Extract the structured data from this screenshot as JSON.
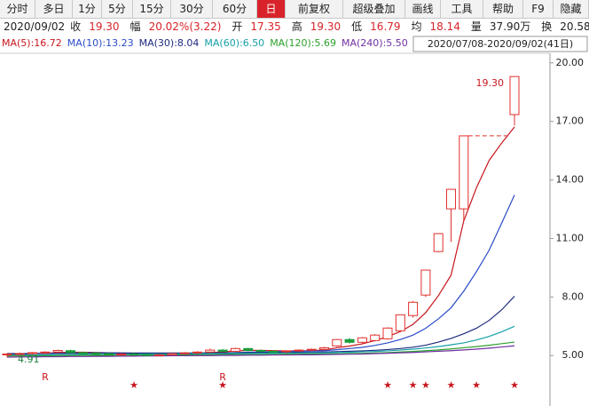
{
  "toolbar": [
    "分时",
    "多日",
    "1分",
    "5分",
    "15分",
    "30分",
    "60分",
    "日",
    "前复权",
    "超级叠加",
    "画线",
    "工具",
    "帮助",
    "F9",
    "隐藏"
  ],
  "toolbar_selected": "日",
  "info": {
    "date": "2020/09/02",
    "items": [
      {
        "label": "收",
        "value": "19.30",
        "color": "#d8232a"
      },
      {
        "label": "幅",
        "value": "20.02%(3.22)",
        "color": "#d8232a"
      },
      {
        "label": "开",
        "value": "17.35",
        "color": "#d8232a"
      },
      {
        "label": "高",
        "value": "19.30",
        "color": "#d8232a"
      },
      {
        "label": "低",
        "value": "16.79",
        "color": "#d8232a"
      },
      {
        "label": "均",
        "value": "18.14",
        "color": "#d8232a"
      },
      {
        "label": "量",
        "value": "37.90万",
        "color": "#222222"
      },
      {
        "label": "换",
        "value": "20.58%",
        "color": "#222222"
      }
    ]
  },
  "chart_data": {
    "type": "candlestick",
    "date_range": "2020/07/08-2020/09/02(41日)",
    "up_color": "#e0302c",
    "down_color": "#1a9c3a",
    "open": [
      5.05,
      5.08,
      5.1,
      5.15,
      5.18,
      5.25,
      5.15,
      5.12,
      5.1,
      5.06,
      5.08,
      5.05,
      5.02,
      5.04,
      5.1,
      5.14,
      5.18,
      5.28,
      5.22,
      5.36,
      5.26,
      5.22,
      5.2,
      5.24,
      5.28,
      5.32,
      5.5,
      5.82,
      5.68,
      5.77,
      5.86,
      6.27,
      7.05,
      8.1,
      10.33,
      12.52,
      12.52,
      null,
      null,
      null,
      17.35
    ],
    "high": [
      5.12,
      5.15,
      5.18,
      5.22,
      5.3,
      5.3,
      5.2,
      5.18,
      5.15,
      5.12,
      5.14,
      5.1,
      5.08,
      5.12,
      5.18,
      5.22,
      5.35,
      5.34,
      5.4,
      5.4,
      5.32,
      5.28,
      5.26,
      5.32,
      5.36,
      5.45,
      5.85,
      5.9,
      5.95,
      6.1,
      6.45,
      7.09,
      7.8,
      9.38,
      11.25,
      13.52,
      16.26,
      null,
      null,
      null,
      19.3
    ],
    "low": [
      4.91,
      5.02,
      5.05,
      5.08,
      5.12,
      5.12,
      5.08,
      5.05,
      5.02,
      5.0,
      5.02,
      4.96,
      4.98,
      5.0,
      5.05,
      5.08,
      5.12,
      5.18,
      5.18,
      5.22,
      5.18,
      5.15,
      5.12,
      5.18,
      5.22,
      5.26,
      5.45,
      5.62,
      5.62,
      5.72,
      5.82,
      6.2,
      6.95,
      8.0,
      10.3,
      10.83,
      11.9,
      null,
      null,
      null,
      16.79
    ],
    "close": [
      5.08,
      5.1,
      5.15,
      5.18,
      5.26,
      5.15,
      5.12,
      5.1,
      5.06,
      5.08,
      5.05,
      5.02,
      5.04,
      5.1,
      5.14,
      5.18,
      5.28,
      5.22,
      5.36,
      5.26,
      5.22,
      5.2,
      5.24,
      5.28,
      5.32,
      5.4,
      5.82,
      5.68,
      5.91,
      6.05,
      6.41,
      7.09,
      7.73,
      9.38,
      11.25,
      13.52,
      16.26,
      null,
      null,
      null,
      19.3
    ],
    "high_label": "19.30",
    "low_label": "4.91",
    "marks_top": [
      null,
      null,
      null,
      "R",
      null,
      null,
      null,
      null,
      null,
      null,
      null,
      null,
      null,
      null,
      null,
      null,
      null,
      "R",
      null,
      null,
      null,
      null,
      null,
      null,
      null,
      null,
      null,
      null,
      null,
      null,
      null,
      null,
      null,
      null,
      null,
      null,
      null,
      null,
      null,
      null,
      null
    ],
    "marks_bottom": [
      null,
      null,
      null,
      null,
      null,
      null,
      null,
      null,
      null,
      null,
      "★",
      null,
      null,
      null,
      null,
      null,
      null,
      "★",
      null,
      null,
      null,
      null,
      null,
      null,
      null,
      null,
      null,
      null,
      null,
      null,
      "★",
      null,
      "★",
      "★",
      null,
      "★",
      null,
      "★",
      null,
      null,
      "★"
    ],
    "series": [
      {
        "name": "MA(5):16.72",
        "color": "#c8161d",
        "values": [
          5.06,
          5.08,
          5.1,
          5.12,
          5.15,
          5.17,
          5.17,
          5.16,
          5.14,
          5.11,
          5.08,
          5.07,
          5.05,
          5.05,
          5.07,
          5.1,
          5.15,
          5.19,
          5.24,
          5.26,
          5.27,
          5.25,
          5.24,
          5.24,
          5.25,
          5.29,
          5.4,
          5.49,
          5.6,
          5.77,
          5.97,
          6.23,
          6.6,
          7.2,
          8.07,
          9.12,
          11.9,
          13.6,
          15.0,
          15.9,
          16.72
        ]
      },
      {
        "name": "MA(10):13.23",
        "color": "#2b4bc8",
        "values": [
          5.08,
          5.09,
          5.1,
          5.11,
          5.12,
          5.13,
          5.14,
          5.14,
          5.14,
          5.13,
          5.12,
          5.12,
          5.11,
          5.1,
          5.09,
          5.09,
          5.1,
          5.12,
          5.15,
          5.17,
          5.19,
          5.2,
          5.21,
          5.22,
          5.23,
          5.25,
          5.3,
          5.36,
          5.42,
          5.52,
          5.65,
          5.82,
          6.05,
          6.4,
          6.88,
          7.45,
          8.3,
          9.3,
          10.4,
          11.8,
          13.23
        ]
      },
      {
        "name": "MA(30):8.04",
        "color": "#1f2a80",
        "values": [
          5.1,
          5.1,
          5.11,
          5.11,
          5.12,
          5.12,
          5.12,
          5.13,
          5.13,
          5.13,
          5.13,
          5.13,
          5.13,
          5.13,
          5.13,
          5.13,
          5.14,
          5.14,
          5.15,
          5.15,
          5.16,
          5.16,
          5.17,
          5.17,
          5.17,
          5.18,
          5.2,
          5.22,
          5.24,
          5.27,
          5.31,
          5.36,
          5.43,
          5.53,
          5.69,
          5.88,
          6.12,
          6.4,
          6.8,
          7.35,
          8.04
        ]
      },
      {
        "name": "MA(60):6.50",
        "color": "#17a0a8",
        "values": [
          5.02,
          5.03,
          5.03,
          5.04,
          5.04,
          5.05,
          5.05,
          5.06,
          5.06,
          5.07,
          5.07,
          5.08,
          5.08,
          5.08,
          5.09,
          5.09,
          5.1,
          5.1,
          5.11,
          5.11,
          5.12,
          5.12,
          5.13,
          5.13,
          5.14,
          5.14,
          5.16,
          5.17,
          5.19,
          5.21,
          5.24,
          5.28,
          5.33,
          5.39,
          5.46,
          5.55,
          5.65,
          5.8,
          5.98,
          6.22,
          6.5
        ]
      },
      {
        "name": "MA(120):5.69",
        "color": "#2ca02c",
        "values": [
          4.98,
          4.98,
          4.99,
          4.99,
          5.0,
          5.0,
          5.01,
          5.01,
          5.01,
          5.02,
          5.02,
          5.02,
          5.03,
          5.03,
          5.03,
          5.04,
          5.04,
          5.05,
          5.05,
          5.05,
          5.06,
          5.06,
          5.07,
          5.07,
          5.08,
          5.08,
          5.09,
          5.1,
          5.11,
          5.13,
          5.15,
          5.18,
          5.21,
          5.25,
          5.29,
          5.34,
          5.4,
          5.46,
          5.53,
          5.61,
          5.69
        ]
      },
      {
        "name": "MA(240):5.50",
        "color": "#7030a0",
        "values": [
          4.92,
          4.93,
          4.93,
          4.94,
          4.94,
          4.95,
          4.95,
          4.96,
          4.96,
          4.97,
          4.97,
          4.98,
          4.98,
          4.99,
          4.99,
          5.0,
          5.0,
          5.01,
          5.01,
          5.02,
          5.02,
          5.03,
          5.03,
          5.04,
          5.04,
          5.05,
          5.06,
          5.07,
          5.08,
          5.1,
          5.12,
          5.14,
          5.16,
          5.19,
          5.22,
          5.25,
          5.29,
          5.33,
          5.38,
          5.44,
          5.5
        ]
      }
    ],
    "ylim": [
      4.1,
      20.4
    ],
    "yticks": [
      {
        "value": 20,
        "label": "20.00"
      },
      {
        "value": 17,
        "label": "17.00"
      },
      {
        "value": 14,
        "label": "14.00"
      },
      {
        "value": 11,
        "label": "11.00"
      },
      {
        "value": 8,
        "label": "8.00"
      },
      {
        "value": 5,
        "label": "5.00"
      }
    ]
  }
}
